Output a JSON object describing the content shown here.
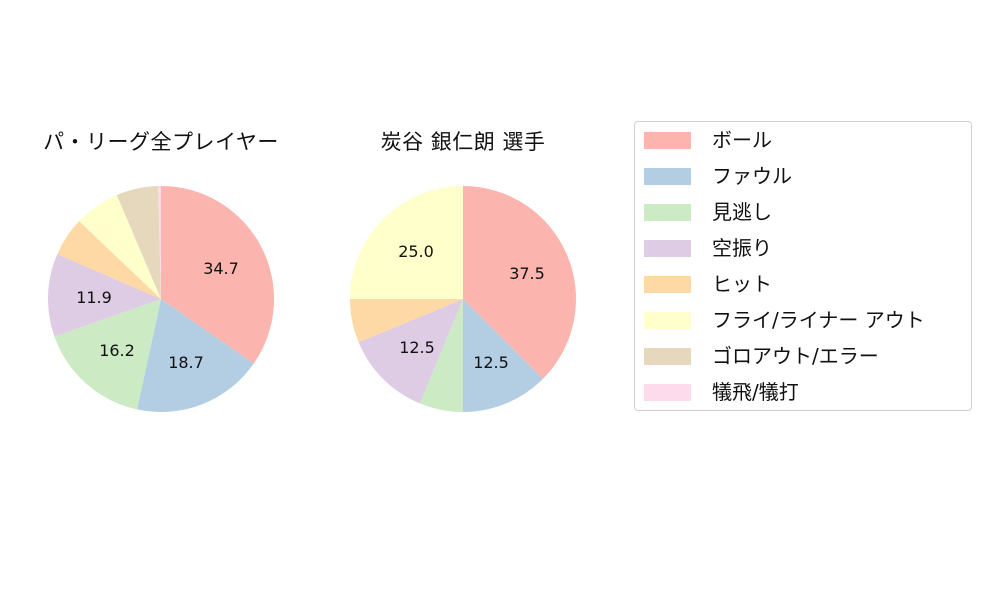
{
  "chart_data": [
    {
      "type": "pie",
      "title": "パ・リーグ全プレイヤー",
      "categories": [
        "ボール",
        "ファウル",
        "見逃し",
        "空振り",
        "ヒット",
        "フライ/ライナー アウト",
        "ゴロアウト/エラー",
        "犠飛/犠打"
      ],
      "values": [
        34.7,
        18.7,
        16.2,
        11.9,
        5.6,
        6.5,
        6.0,
        0.4
      ],
      "labels_shown": [
        "34.7",
        "18.7",
        "16.2",
        "11.9",
        "",
        "",
        "",
        ""
      ],
      "start_angle": "top, clockwise"
    },
    {
      "type": "pie",
      "title": "炭谷 銀仁朗  選手",
      "categories": [
        "ボール",
        "ファウル",
        "見逃し",
        "空振り",
        "ヒット",
        "フライ/ライナー アウト",
        "ゴロアウト/エラー",
        "犠飛/犠打"
      ],
      "values": [
        37.5,
        12.5,
        6.25,
        12.5,
        6.25,
        25.0,
        0,
        0
      ],
      "labels_shown": [
        "37.5",
        "12.5",
        "",
        "12.5",
        "",
        "25.0",
        "",
        ""
      ],
      "start_angle": "top, clockwise"
    }
  ],
  "charts": {
    "left": {
      "title": "パ・リーグ全プレイヤー",
      "labels": {
        "ball": "34.7",
        "foul": "18.7",
        "looking": "16.2",
        "swinging": "11.9"
      }
    },
    "right": {
      "title": "炭谷 銀仁朗  選手",
      "labels": {
        "ball": "37.5",
        "foul": "12.5",
        "swinging": "12.5",
        "fly": "25.0"
      }
    }
  },
  "legend": {
    "items": [
      {
        "label": "ボール",
        "color": "#fbb4ae"
      },
      {
        "label": "ファウル",
        "color": "#b3cde3"
      },
      {
        "label": "見逃し",
        "color": "#ccebc5"
      },
      {
        "label": "空振り",
        "color": "#decbe4"
      },
      {
        "label": "ヒット",
        "color": "#fed9a6"
      },
      {
        "label": "フライ/ライナー アウト",
        "color": "#ffffcc"
      },
      {
        "label": "ゴロアウト/エラー",
        "color": "#e5d8bd"
      },
      {
        "label": "犠飛/犠打",
        "color": "#fddaec"
      }
    ]
  }
}
